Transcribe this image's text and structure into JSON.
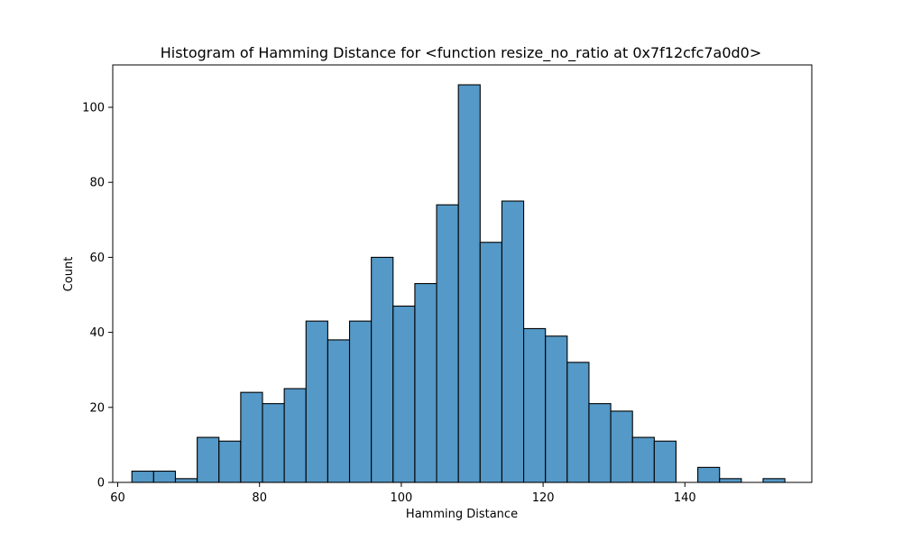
{
  "chart_data": {
    "type": "bar",
    "title": "Histogram of Hamming Distance for <function resize_no_ratio at 0x7f12cfc7a0d0>",
    "xlabel": "Hamming Distance",
    "ylabel": "Count",
    "xlim": [
      59.3,
      157.9
    ],
    "ylim": [
      0,
      111.3
    ],
    "xticks": [
      60,
      80,
      100,
      120,
      140
    ],
    "yticks": [
      0,
      20,
      40,
      60,
      80,
      100
    ],
    "grid": false,
    "bin_start": 62.0,
    "bin_width": 3.07,
    "bar_color": "#5499c7",
    "edge_color": "#000000",
    "values": [
      3,
      3,
      1,
      12,
      11,
      24,
      21,
      25,
      43,
      38,
      43,
      60,
      47,
      53,
      74,
      106,
      64,
      75,
      41,
      39,
      32,
      21,
      19,
      12,
      11,
      0,
      4,
      1,
      0,
      1
    ]
  }
}
